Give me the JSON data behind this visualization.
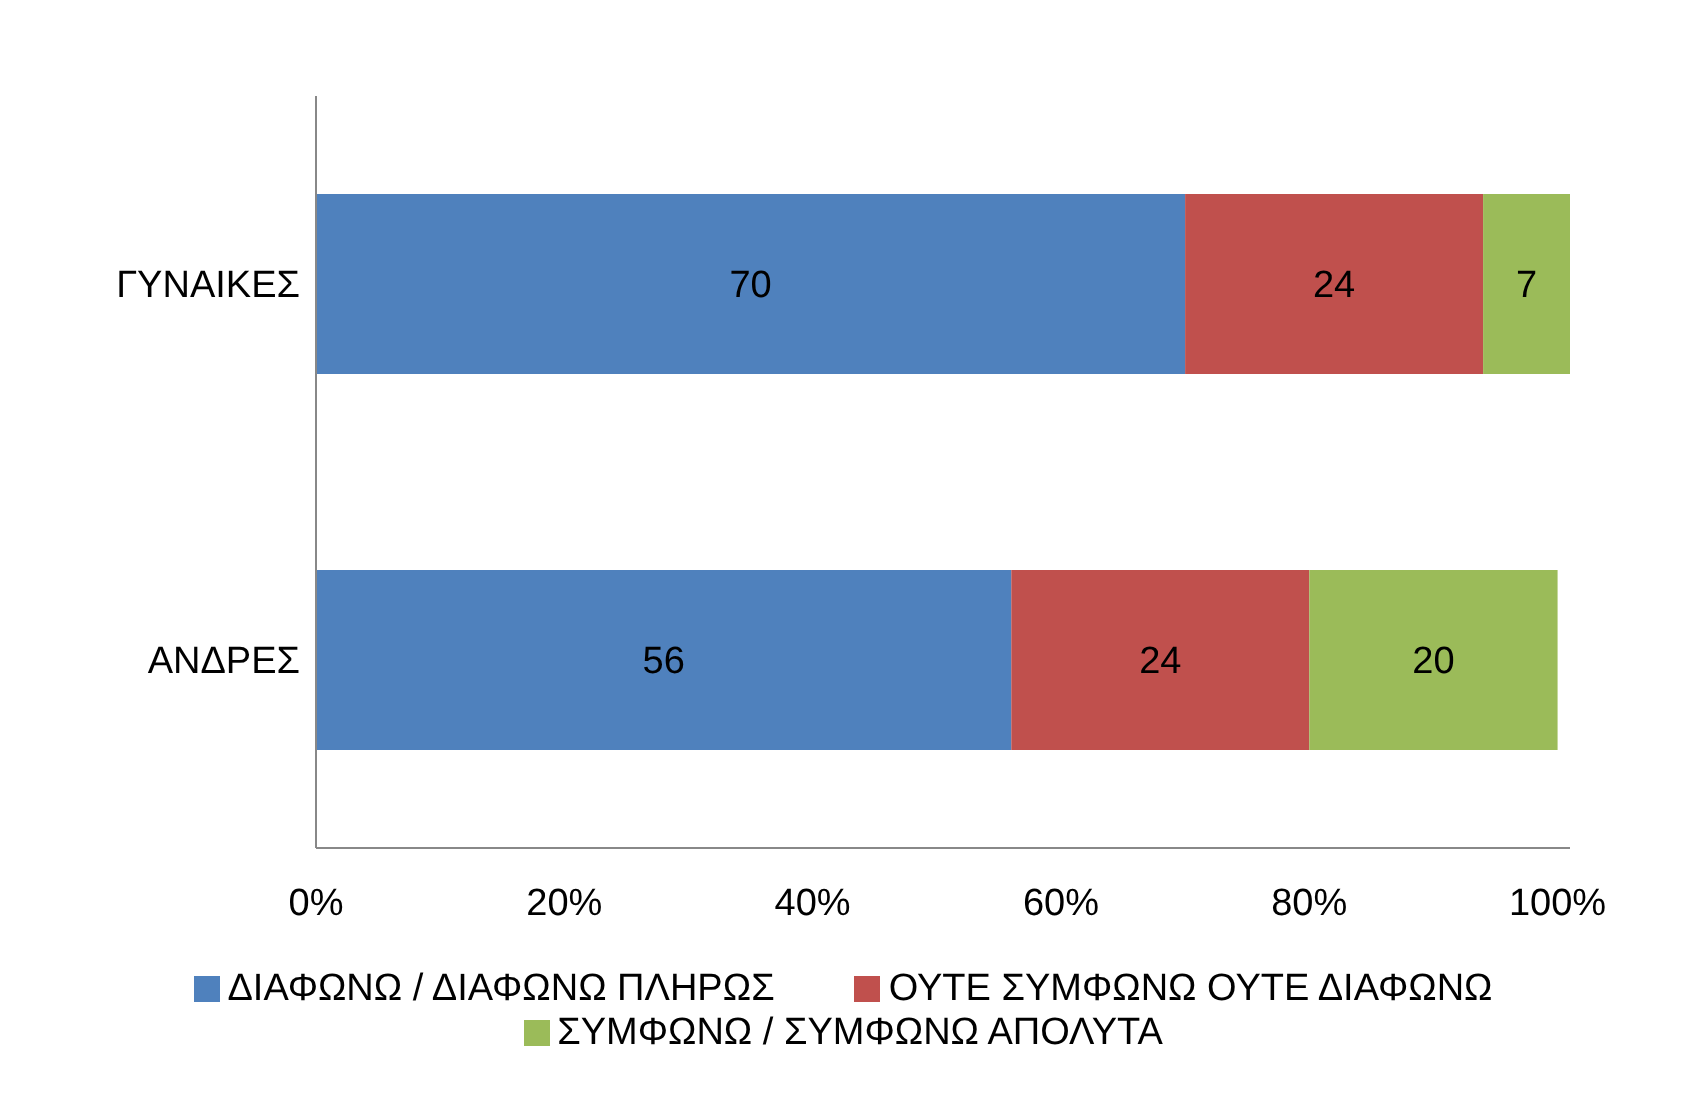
{
  "chart_data": {
    "type": "bar",
    "orientation": "horizontal",
    "stacked": true,
    "categories": [
      "ΓΥΝΑΙΚΕΣ",
      "ΑΝΔΡΕΣ"
    ],
    "series": [
      {
        "name": "ΔΙΑΦΩΝΩ / ΔΙΑΦΩΝΩ ΠΛΗΡΩΣ",
        "color": "#4f81bd",
        "values": [
          70,
          56
        ]
      },
      {
        "name": "ΟΥΤΕ ΣΥΜΦΩΝΩ ΟΥΤΕ ΔΙΑΦΩΝΩ",
        "color": "#c0504d",
        "values": [
          24,
          24
        ]
      },
      {
        "name": "ΣΥΜΦΩΝΩ / ΣΥΜΦΩΝΩ ΑΠΟΛΥΤΑ",
        "color": "#9bbb59",
        "values": [
          7,
          20
        ]
      }
    ],
    "xlim": [
      0,
      101
    ],
    "xticks": [
      {
        "value": 0,
        "label": "0%"
      },
      {
        "value": 20,
        "label": "20%"
      },
      {
        "value": 40,
        "label": "40%"
      },
      {
        "value": 60,
        "label": "60%"
      },
      {
        "value": 80,
        "label": "80%"
      },
      {
        "value": 100,
        "label": "100%"
      }
    ],
    "data_labels": true,
    "grid": false,
    "legend": "bottom"
  }
}
